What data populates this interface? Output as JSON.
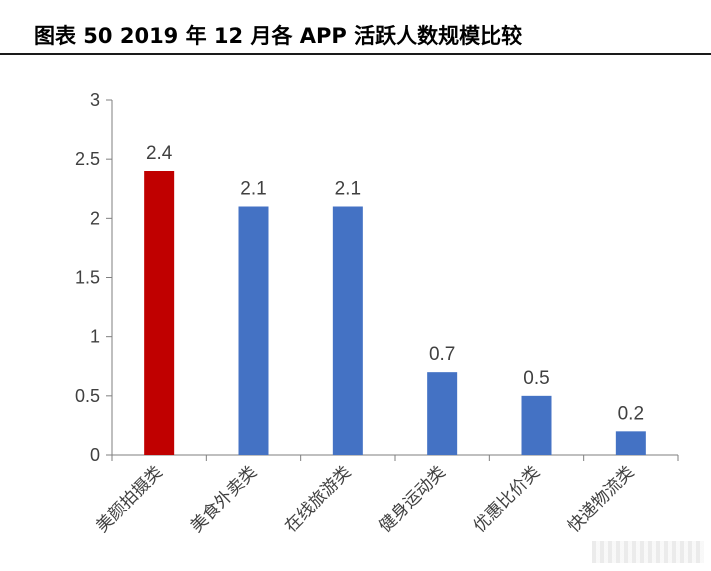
{
  "header": {
    "title": "图表 50 2019 年 12 月各 APP 活跃人数规模比较"
  },
  "colors": {
    "highlight": "#c00000",
    "bar": "#4472c4",
    "axis": "#7f7f7f",
    "text": "#404040"
  },
  "chart_data": {
    "type": "bar",
    "title": "",
    "xlabel": "",
    "ylabel": "",
    "categories": [
      "美颜拍摄类",
      "美食外卖类",
      "在线旅游类",
      "健身运动类",
      "优惠比价类",
      "快递物流类"
    ],
    "values": [
      2.4,
      2.1,
      2.1,
      0.7,
      0.5,
      0.2
    ],
    "data_labels": [
      "2.4",
      "2.1",
      "2.1",
      "0.7",
      "0.5",
      "0.2"
    ],
    "highlight_index": 0,
    "ylim": [
      0,
      3
    ],
    "yticks": [
      0,
      0.5,
      1,
      1.5,
      2,
      2.5,
      3
    ],
    "ytick_labels": [
      "0",
      "0.5",
      "1",
      "1.5",
      "2",
      "2.5",
      "3"
    ],
    "grid": false,
    "legend": "none"
  }
}
